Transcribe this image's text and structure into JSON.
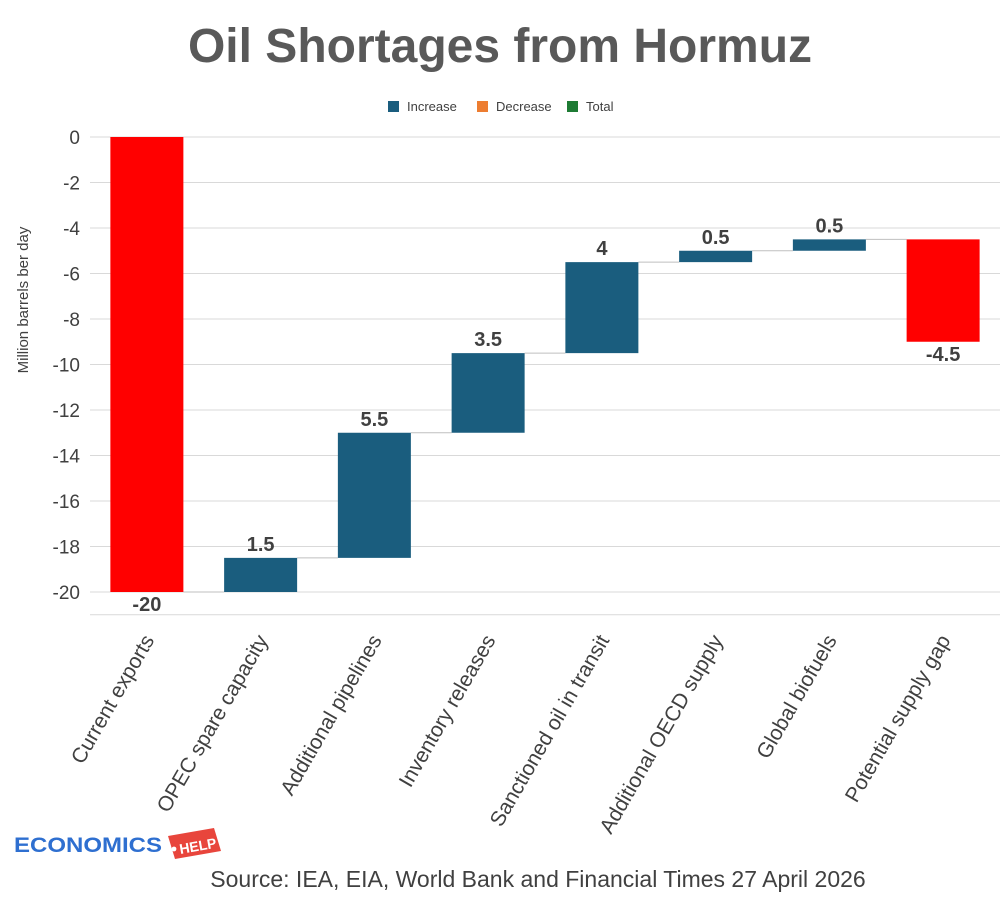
{
  "chart_data": {
    "type": "waterfall",
    "title": "Oil Shortages from Hormuz",
    "ylabel": "Million barrels ber day",
    "ylim": [
      -21,
      0
    ],
    "yticks": [
      0,
      -2,
      -4,
      -6,
      -8,
      -10,
      -12,
      -14,
      -16,
      -18,
      -20
    ],
    "grid": true,
    "legend_position": "top",
    "legend": [
      {
        "label": "Increase",
        "color": "#1a5d7e"
      },
      {
        "label": "Decrease",
        "color": "#ed7d31"
      },
      {
        "label": "Total",
        "color": "#1e7b34"
      }
    ],
    "categories": [
      "Current exports",
      "OPEC spare capacity",
      "Additional pipelines",
      "Inventory releases",
      "Sanctioned oil in transit",
      "Additional OECD supply",
      "Global biofuels",
      "Potential supply gap"
    ],
    "values": [
      -20,
      1.5,
      5.5,
      3.5,
      4,
      0.5,
      0.5,
      -4.5
    ],
    "bars": [
      {
        "start": 0,
        "end": -20,
        "label": "-20",
        "color": "#ff0000"
      },
      {
        "start": -20,
        "end": -18.5,
        "label": "1.5",
        "color": "#1a5d7e"
      },
      {
        "start": -18.5,
        "end": -13,
        "label": "5.5",
        "color": "#1a5d7e"
      },
      {
        "start": -13,
        "end": -9.5,
        "label": "3.5",
        "color": "#1a5d7e"
      },
      {
        "start": -9.5,
        "end": -5.5,
        "label": "4",
        "color": "#1a5d7e"
      },
      {
        "start": -5.5,
        "end": -5,
        "label": "0.5",
        "color": "#1a5d7e"
      },
      {
        "start": -5,
        "end": -4.5,
        "label": "0.5",
        "color": "#1a5d7e"
      },
      {
        "start": -4.5,
        "end": -9,
        "label": "-4.5",
        "color": "#ff0000"
      }
    ]
  },
  "source": "Source: IEA, EIA, World Bank and Financial Times 27 April 2026",
  "logo": {
    "word1": "ECONOMICS",
    "word2": "HELP",
    "color_text": "#2e6fd0",
    "color_tag": "#e8453c"
  }
}
